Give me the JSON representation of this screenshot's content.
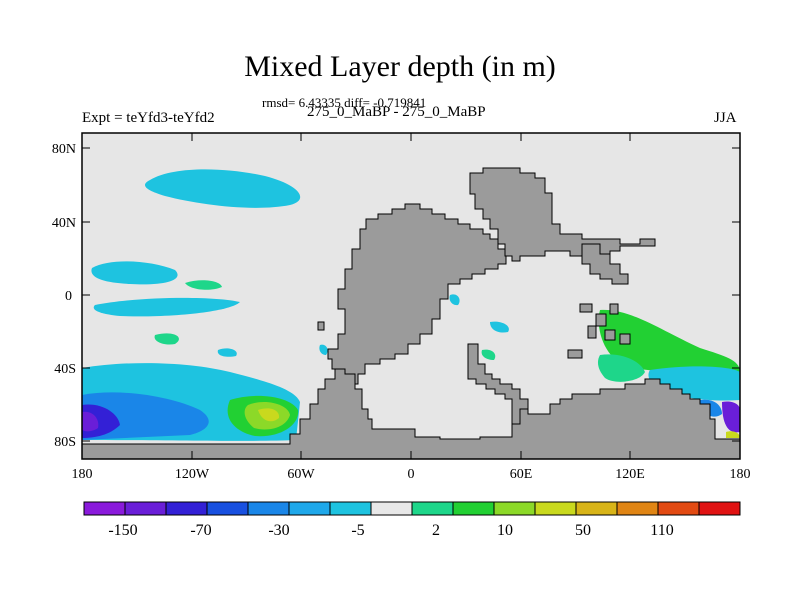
{
  "title": "Mixed Layer depth (in m)",
  "stats_line": "rmsd= 6.43335 diff= -0.719841",
  "subtitle_center": "275_0_MaBP - 275_0_MaBP",
  "subtitle_left": "Expt = teYfd3-teYfd2",
  "subtitle_right": "JJA",
  "lat_labels": [
    "80N",
    "40N",
    "0",
    "40S",
    "80S"
  ],
  "lon_labels": [
    "180",
    "120W",
    "60W",
    "0",
    "60E",
    "120E",
    "180"
  ],
  "colorbar": {
    "labels": [
      "-150",
      "-70",
      "-30",
      "-5",
      "2",
      "10",
      "50",
      "110"
    ],
    "colors": [
      "#8a1adb",
      "#6a1ed8",
      "#3320d6",
      "#1850e0",
      "#1a86e8",
      "#1fa8ea",
      "#1ec3e0",
      "#e8e8e8",
      "#1ed68a",
      "#22d033",
      "#8cd928",
      "#c9d91e",
      "#d8b418",
      "#e08514",
      "#e24a12",
      "#e01212"
    ]
  },
  "colors": {
    "land": "#9b9b9b",
    "ocean_neutral": "#e6e6e6"
  }
}
